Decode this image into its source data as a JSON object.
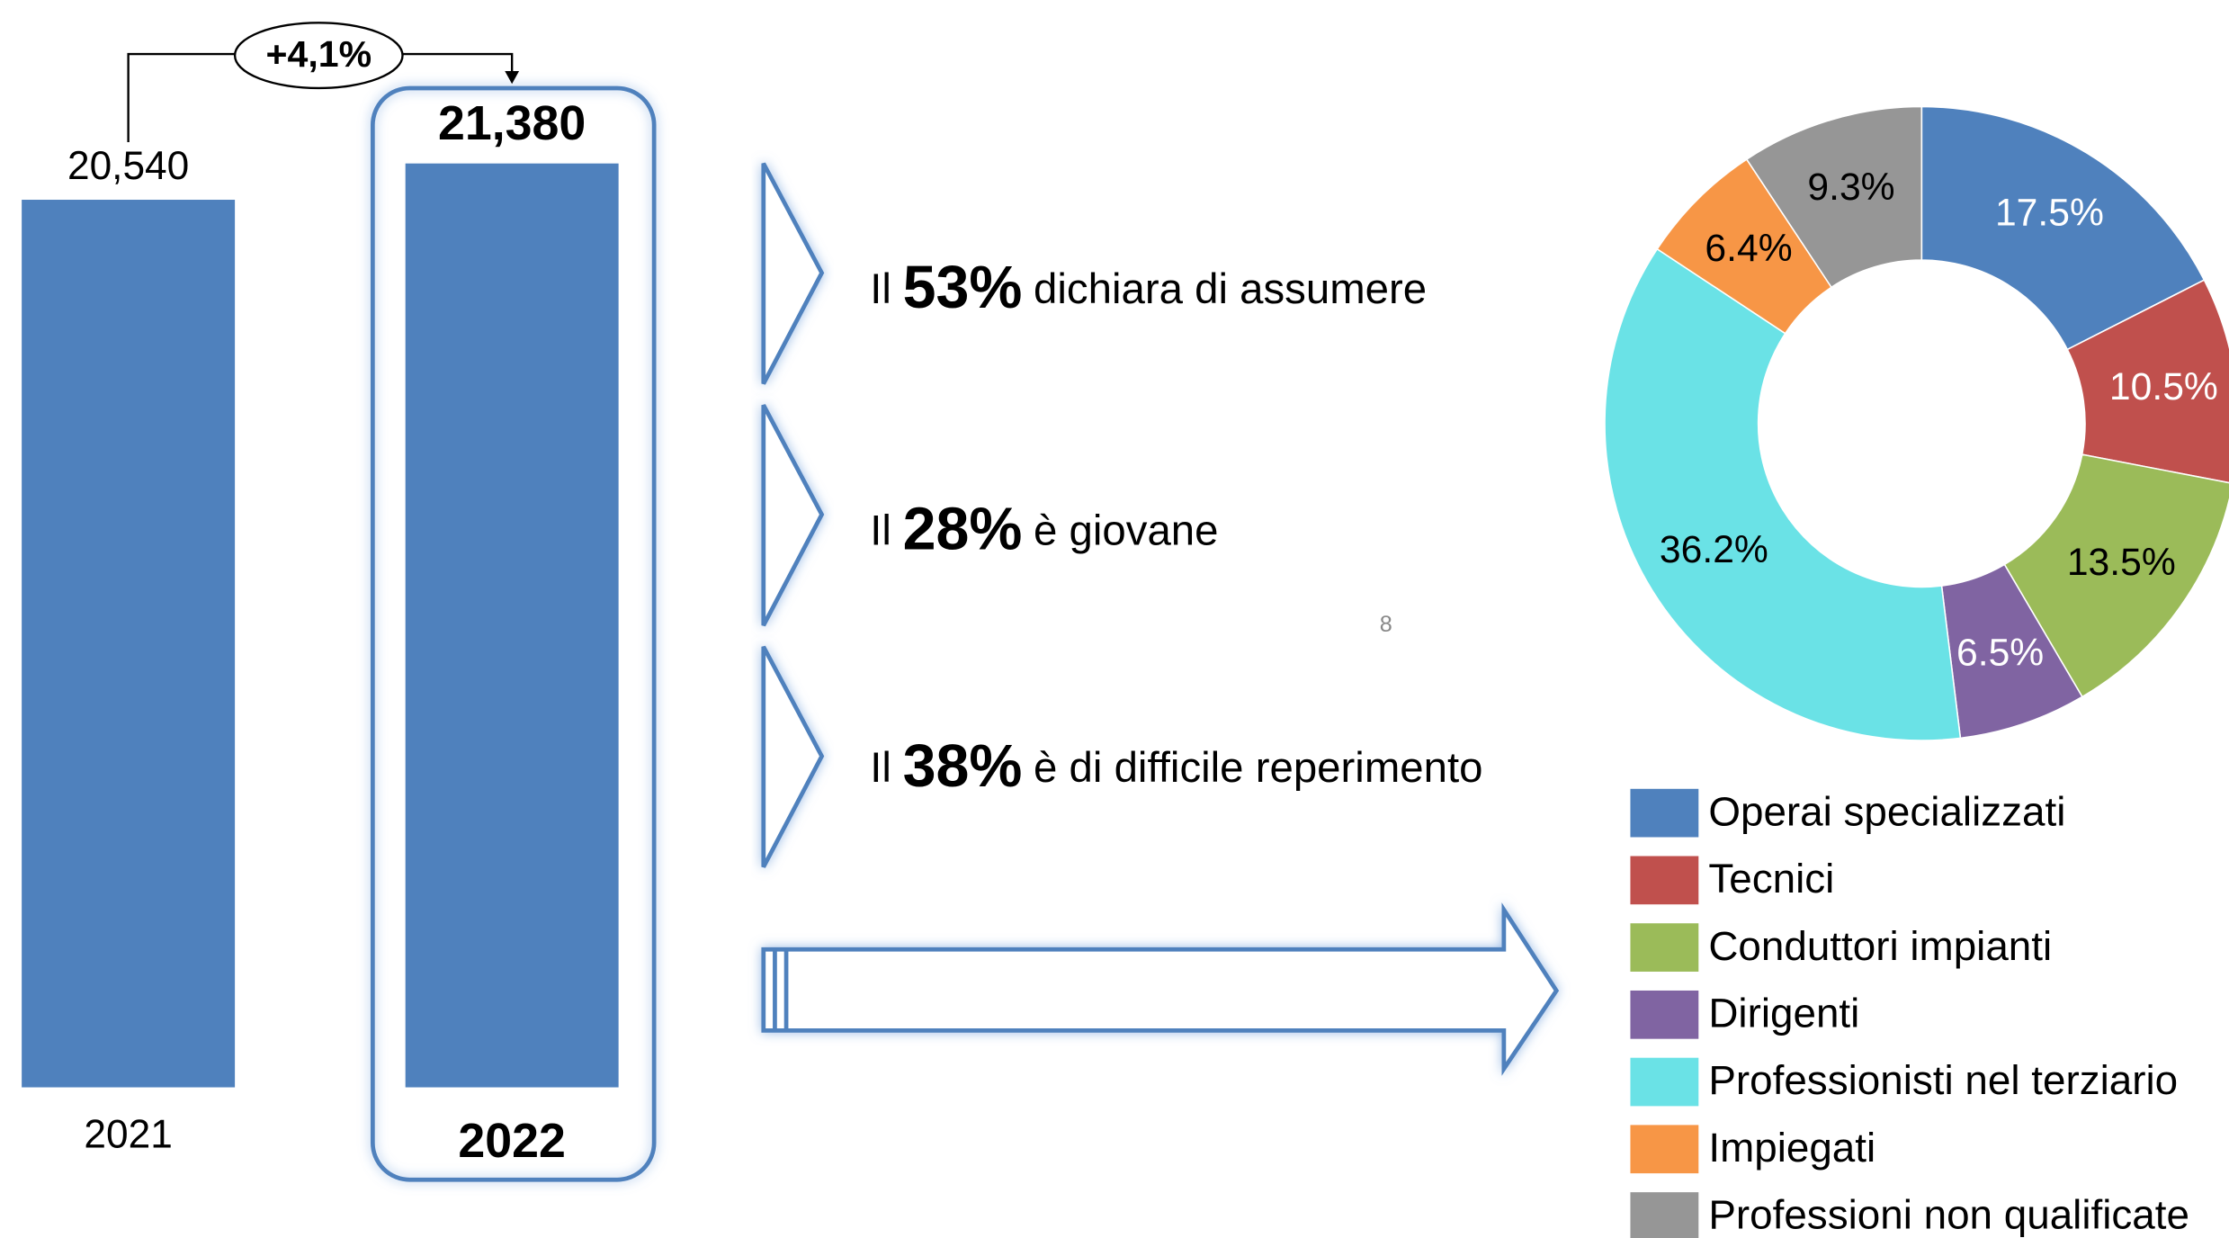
{
  "chart_data": [
    {
      "type": "bar",
      "categories": [
        "2021",
        "2022"
      ],
      "values": [
        20540,
        21380
      ],
      "value_labels": [
        "20,540",
        "21,380"
      ],
      "color": "#4f81bd"
    },
    {
      "type": "pie",
      "categories": [
        "Operai specializzati",
        "Tecnici",
        "Conduttori impianti",
        "Dirigenti",
        "Professionisti nel terziario",
        "Impiegati",
        "Professioni non qualificate"
      ],
      "values": [
        17.5,
        10.5,
        13.5,
        6.5,
        36.2,
        6.4,
        9.3
      ],
      "value_labels": [
        "17.5%",
        "10.5%",
        "13.5%",
        "6.5%",
        "36.2%",
        "6.4%",
        "9.3%"
      ],
      "colors": [
        "#4f81bd",
        "#c0504d",
        "#9bbb59",
        "#8064a2",
        "#6ae2e6",
        "#f79646",
        "#969696"
      ]
    }
  ],
  "change_label": "+4,1%",
  "statements": [
    {
      "prefix": "Il",
      "value": "53%",
      "text": "dichiara di assumere"
    },
    {
      "prefix": "Il",
      "value": "28%",
      "text": "è giovane"
    },
    {
      "prefix": "Il",
      "value": "38%",
      "text": "è di difficile reperimento"
    }
  ],
  "page_number": "8"
}
